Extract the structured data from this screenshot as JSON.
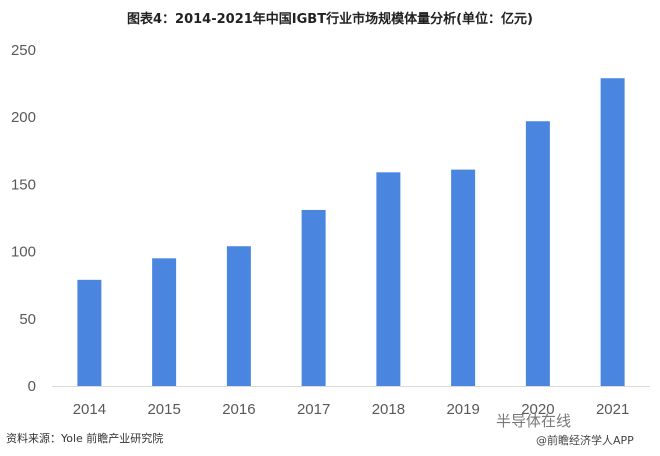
{
  "header": {
    "title": "图表4：2014-2021年中国IGBT行业市场规模体量分析(单位：亿元)"
  },
  "footer": {
    "source": "资料来源：Yole 前瞻产业研究院",
    "watermark": "半导体在线",
    "brand": "@前瞻经济学人APP"
  },
  "colors": {
    "bar": "#4a86e0",
    "axis": "#d9d9d9",
    "text": "#595959"
  },
  "chart_data": {
    "type": "bar",
    "title": "图表4：2014-2021年中国IGBT行业市场规模体量分析(单位：亿元)",
    "xlabel": "",
    "ylabel": "",
    "categories": [
      "2014",
      "2015",
      "2016",
      "2017",
      "2018",
      "2019",
      "2020",
      "2021"
    ],
    "values": [
      79,
      95,
      104,
      131,
      159,
      161,
      197,
      229
    ],
    "ylim": [
      0,
      250
    ],
    "yticks": [
      0,
      50,
      100,
      150,
      200,
      250
    ],
    "grid": false,
    "legend": "none"
  }
}
